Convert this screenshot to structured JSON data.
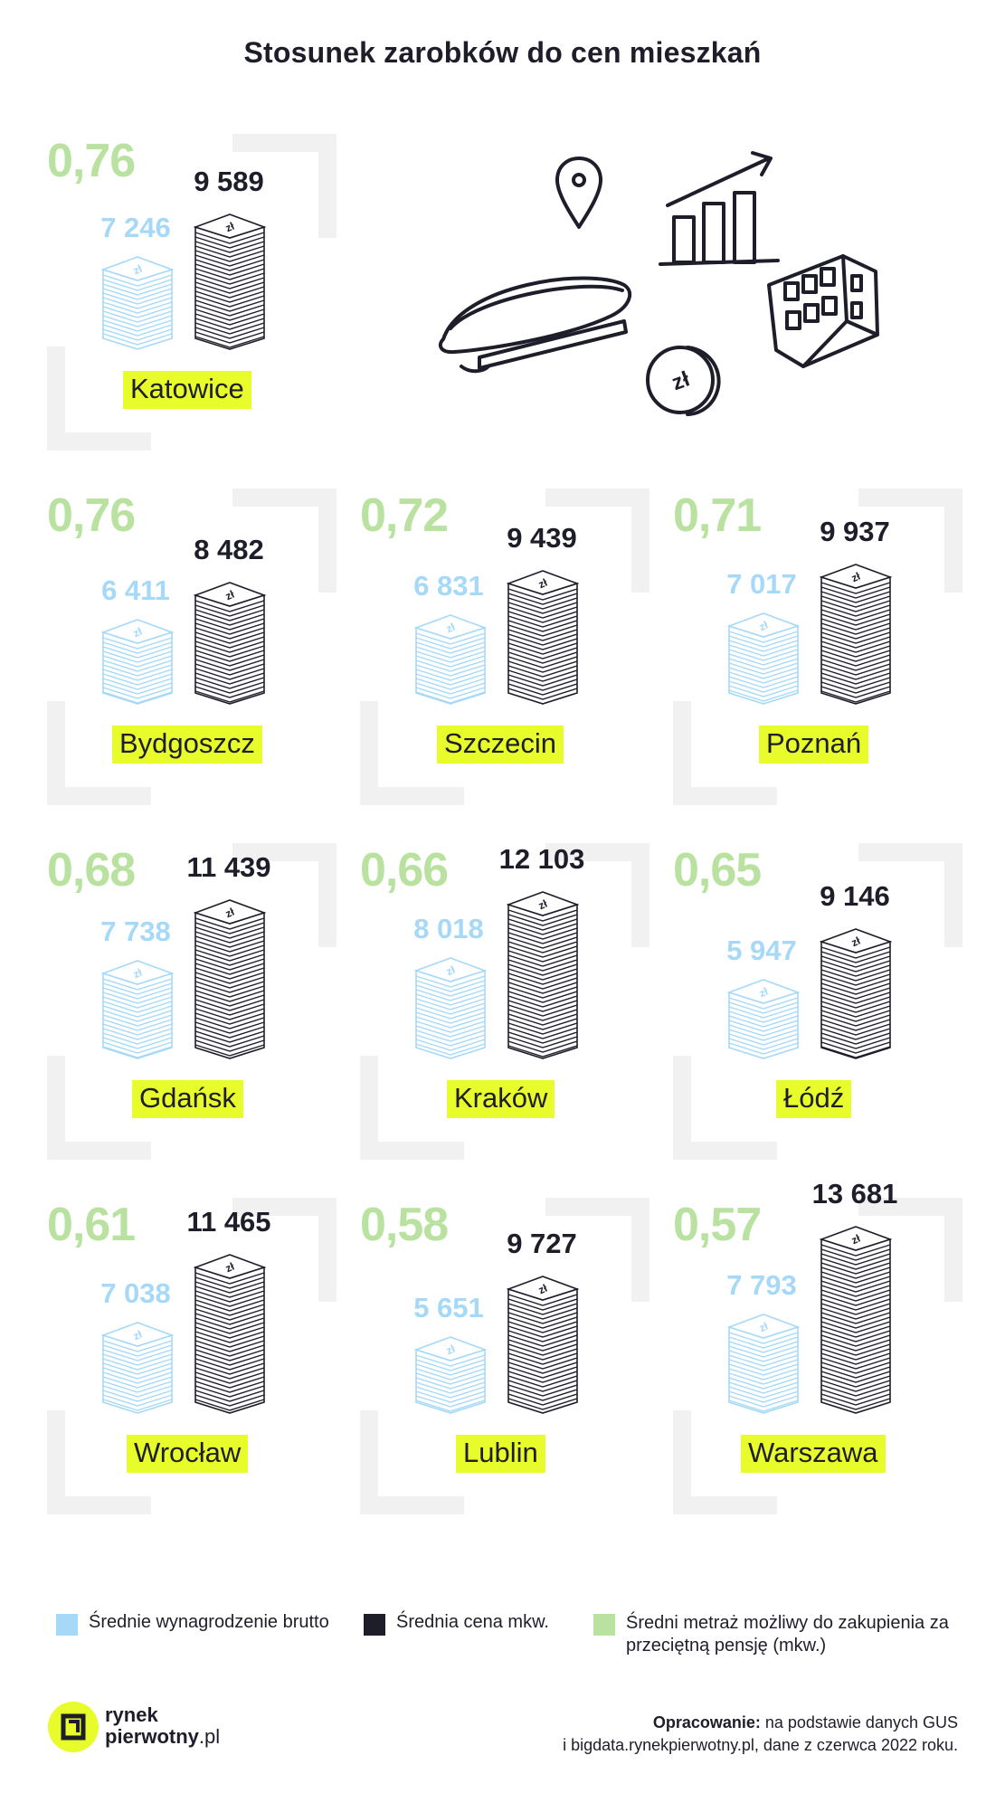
{
  "title": "Stosunek zarobków do cen mieszkań",
  "colors": {
    "salary": "#a6d9f8",
    "price": "#1e1e2a",
    "ratio": "#b9e2a0",
    "highlight": "#e8fb2b"
  },
  "chart_data": {
    "type": "bar",
    "title": "Stosunek zarobków do cen mieszkań",
    "categories": [
      "Katowice",
      "Bydgoszcz",
      "Szczecin",
      "Poznań",
      "Gdańsk",
      "Kraków",
      "Łódź",
      "Wrocław",
      "Lublin",
      "Warszawa"
    ],
    "series": [
      {
        "name": "Średnie wynagrodzenie brutto",
        "values": [
          7246,
          6411,
          6831,
          7017,
          7738,
          8018,
          5947,
          7038,
          5651,
          7793
        ]
      },
      {
        "name": "Średnia cena mkw.",
        "values": [
          9589,
          8482,
          9439,
          9937,
          11439,
          12103,
          9146,
          11465,
          9727,
          13681
        ]
      },
      {
        "name": "Średni metraż możliwy do zakupienia za przeciętną pensję (mkw.)",
        "values": [
          0.76,
          0.76,
          0.72,
          0.71,
          0.68,
          0.66,
          0.65,
          0.61,
          0.58,
          0.57
        ]
      }
    ],
    "cities": [
      {
        "city": "Katowice",
        "ratio": "0,76",
        "salary": "7 246",
        "price": "9 589"
      },
      {
        "city": "Bydgoszcz",
        "ratio": "0,76",
        "salary": "6 411",
        "price": "8 482"
      },
      {
        "city": "Szczecin",
        "ratio": "0,72",
        "salary": "6 831",
        "price": "9 439"
      },
      {
        "city": "Poznań",
        "ratio": "0,71",
        "salary": "7 017",
        "price": "9 937"
      },
      {
        "city": "Gdańsk",
        "ratio": "0,68",
        "salary": "7 738",
        "price": "11 439"
      },
      {
        "city": "Kraków",
        "ratio": "0,66",
        "salary": "8 018",
        "price": "12 103"
      },
      {
        "city": "Łódź",
        "ratio": "0,65",
        "salary": "5 947",
        "price": "9 146"
      },
      {
        "city": "Wrocław",
        "ratio": "0,61",
        "salary": "7 038",
        "price": "11 465"
      },
      {
        "city": "Lublin",
        "ratio": "0,58",
        "salary": "5 651",
        "price": "9 727"
      },
      {
        "city": "Warszawa",
        "ratio": "0,57",
        "salary": "7 793",
        "price": "13 681"
      }
    ]
  },
  "stack_symbol": "zł",
  "illustration": {
    "coin_label": "zł"
  },
  "legend": [
    {
      "label": "Średnie wynagrodzenie brutto",
      "color": "#a6d9f8"
    },
    {
      "label": "Średnia cena mkw.",
      "color": "#1e1e2a"
    },
    {
      "label": "Średni metraż możliwy do zakupienia za przeciętną pensję (mkw.)",
      "color": "#b9e2a0"
    }
  ],
  "logo": {
    "line1": "rynek",
    "line2": "pierwotny",
    "suffix": ".pl"
  },
  "source": {
    "prefix": "Opracowanie:",
    "line1": " na podstawie danych GUS",
    "line2": "i bigdata.rynekpierwotny.pl, dane z czerwca 2022 roku."
  }
}
